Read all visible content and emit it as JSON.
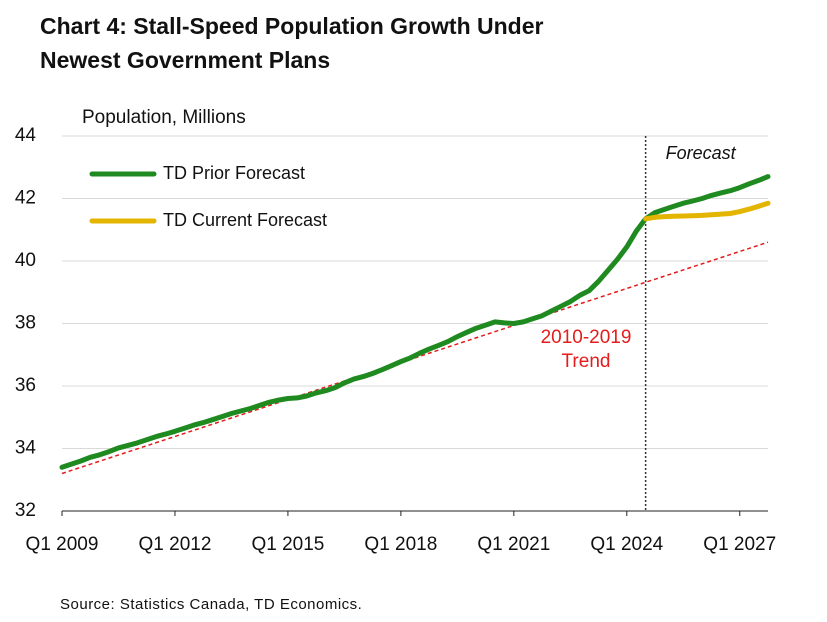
{
  "chart_data": {
    "type": "line",
    "title": [
      "Chart 4: Stall-Speed Population Growth Under",
      "Newest Government Plans"
    ],
    "ylabel": "Population, Millions",
    "source": "Source: Statistics Canada, TD Economics.",
    "xlim": [
      2009,
      2027.75
    ],
    "xticks": [
      {
        "value": 2009,
        "label": "Q1 2009"
      },
      {
        "value": 2012,
        "label": "Q1 2012"
      },
      {
        "value": 2015,
        "label": "Q1 2015"
      },
      {
        "value": 2018,
        "label": "Q1 2018"
      },
      {
        "value": 2021,
        "label": "Q1 2021"
      },
      {
        "value": 2024,
        "label": "Q1 2024"
      },
      {
        "value": 2027,
        "label": "Q1 2027"
      }
    ],
    "ylim": [
      32,
      44
    ],
    "yticks": [
      32,
      34,
      36,
      38,
      40,
      42,
      44
    ],
    "grid": true,
    "legend": "upper left",
    "x": [
      2009,
      2009.25,
      2009.5,
      2009.75,
      2010,
      2010.25,
      2010.5,
      2010.75,
      2011,
      2011.25,
      2011.5,
      2011.75,
      2012,
      2012.25,
      2012.5,
      2012.75,
      2013,
      2013.25,
      2013.5,
      2013.75,
      2014,
      2014.25,
      2014.5,
      2014.75,
      2015,
      2015.25,
      2015.5,
      2015.75,
      2016,
      2016.25,
      2016.5,
      2016.75,
      2017,
      2017.25,
      2017.5,
      2017.75,
      2018,
      2018.25,
      2018.5,
      2018.75,
      2019,
      2019.25,
      2019.5,
      2019.75,
      2020,
      2020.25,
      2020.5,
      2020.75,
      2021,
      2021.25,
      2021.5,
      2021.75,
      2022,
      2022.25,
      2022.5,
      2022.75,
      2023,
      2023.25,
      2023.5,
      2023.75,
      2024,
      2024.25,
      2024.5,
      2024.75,
      2025,
      2025.25,
      2025.5,
      2025.75,
      2026,
      2026.25,
      2026.5,
      2026.75,
      2027,
      2027.25,
      2027.5,
      2027.75
    ],
    "series": [
      {
        "name": "TD Prior Forecast",
        "color": "#1f8a1f",
        "values": [
          33.4,
          33.5,
          33.6,
          33.72,
          33.8,
          33.9,
          34.02,
          34.1,
          34.18,
          34.28,
          34.38,
          34.46,
          34.55,
          34.65,
          34.75,
          34.83,
          34.92,
          35.02,
          35.12,
          35.2,
          35.28,
          35.38,
          35.48,
          35.55,
          35.6,
          35.62,
          35.68,
          35.78,
          35.85,
          35.95,
          36.1,
          36.22,
          36.3,
          36.4,
          36.52,
          36.65,
          36.78,
          36.9,
          37.05,
          37.18,
          37.3,
          37.42,
          37.58,
          37.72,
          37.85,
          37.95,
          38.05,
          38.02,
          38.0,
          38.05,
          38.15,
          38.25,
          38.4,
          38.55,
          38.7,
          38.9,
          39.05,
          39.35,
          39.7,
          40.05,
          40.45,
          40.95,
          41.35,
          41.55,
          41.65,
          41.75,
          41.85,
          41.92,
          42.0,
          42.1,
          42.18,
          42.25,
          42.35,
          42.47,
          42.58,
          42.7
        ]
      },
      {
        "name": "TD Current Forecast",
        "color": "#e3b400",
        "values": [
          null,
          null,
          null,
          null,
          null,
          null,
          null,
          null,
          null,
          null,
          null,
          null,
          null,
          null,
          null,
          null,
          null,
          null,
          null,
          null,
          null,
          null,
          null,
          null,
          null,
          null,
          null,
          null,
          null,
          null,
          null,
          null,
          null,
          null,
          null,
          null,
          null,
          null,
          null,
          null,
          null,
          null,
          null,
          null,
          null,
          null,
          null,
          null,
          null,
          null,
          null,
          null,
          null,
          null,
          null,
          null,
          null,
          null,
          null,
          null,
          null,
          null,
          41.35,
          41.4,
          41.42,
          41.43,
          41.44,
          41.45,
          41.46,
          41.48,
          41.5,
          41.52,
          41.58,
          41.66,
          41.75,
          41.85
        ]
      }
    ],
    "trend": {
      "label": [
        "2010-2019",
        "Trend"
      ],
      "color": "#e31c1c",
      "x": [
        2009,
        2027.75
      ],
      "values": [
        33.2,
        40.6
      ]
    },
    "forecast": {
      "label": "Forecast",
      "x": 2024.5
    }
  }
}
